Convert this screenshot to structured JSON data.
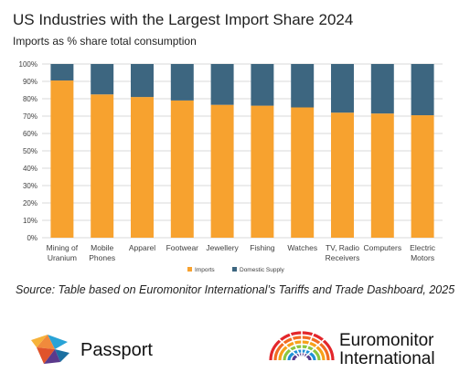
{
  "chart_data": {
    "type": "bar",
    "stacked": true,
    "title": "US Industries with the Largest Import Share 2024",
    "subtitle": "Imports as % share total consumption",
    "categories": [
      "Mining of Uranium",
      "Mobile Phones",
      "Apparel",
      "Footwear",
      "Jewellery",
      "Fishing",
      "Watches",
      "TV, Radio Receivers",
      "Computers",
      "Electric Motors"
    ],
    "category_lines": [
      [
        "Mining of",
        "Uranium"
      ],
      [
        "Mobile",
        "Phones"
      ],
      [
        "Apparel"
      ],
      [
        "Footwear"
      ],
      [
        "Jewellery"
      ],
      [
        "Fishing"
      ],
      [
        "Watches"
      ],
      [
        "TV, Radio",
        "Receivers"
      ],
      [
        "Computers"
      ],
      [
        "Electric",
        "Motors"
      ]
    ],
    "series": [
      {
        "name": "Imports",
        "color": "#f7a22f",
        "values": [
          90.5,
          82.5,
          81,
          79,
          76.5,
          76,
          75,
          72,
          71.5,
          70.5
        ]
      },
      {
        "name": "Domestic Supply",
        "color": "#3d6680",
        "values": [
          9.5,
          17.5,
          19,
          21,
          23.5,
          24,
          25,
          28,
          28.5,
          29.5
        ]
      }
    ],
    "y_ticks": [
      "0%",
      "10%",
      "20%",
      "30%",
      "40%",
      "50%",
      "60%",
      "70%",
      "80%",
      "90%",
      "100%"
    ],
    "ylim": [
      0,
      100
    ],
    "grid": true,
    "legend_position": "bottom"
  },
  "source": "Source: Table based on Euromonitor International’s Tariffs and Trade Dashboard, 2025",
  "logos": {
    "passport": {
      "name": "passport-logo",
      "text": "Passport"
    },
    "euromonitor": {
      "name": "euromonitor-logo",
      "line1": "Euromonitor",
      "line2": "International"
    }
  }
}
